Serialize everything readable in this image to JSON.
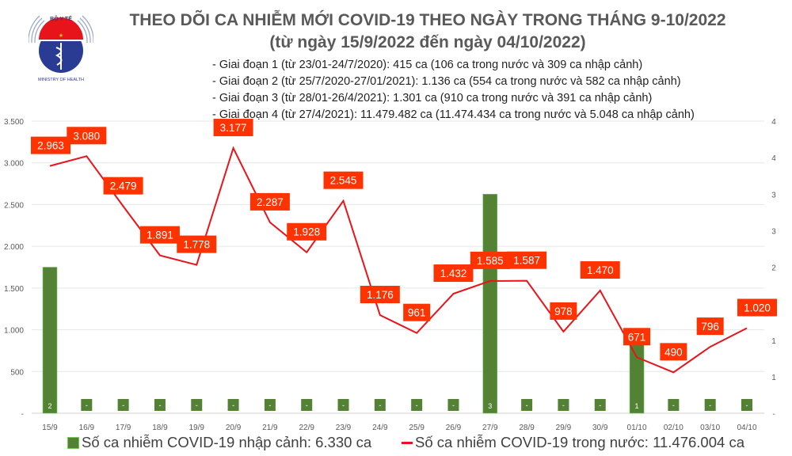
{
  "logo": {
    "text_top": "BỘ Y TẾ",
    "text_bottom": "MINISTRY OF HEALTH"
  },
  "header": {
    "title": "THEO DÕI CA NHIỄM MỚI COVID-19 THEO NGÀY TRONG THÁNG 9-10/2022",
    "subtitle": "(từ ngày 15/9/2022 đến ngày 04/10/2022)",
    "notes": [
      "- Giai đoạn 1 (từ 23/01-24/7/2020): 415 ca (106 ca trong nước và 309 ca nhập cảnh)",
      "- Giai đoạn 2 (từ 25/7/2020-27/01/2021): 1.136 ca (554 ca trong nước và 582 ca nhập cảnh)",
      "- Giai đoạn 3 (từ 28/01-26/4/2021): 1.301 ca (910 ca trong nước và 391 ca nhập cảnh)",
      "- Giai đoạn 4 (từ 27/4/2021): 11.479.482 ca (11.474.434 ca trong nước và 5.048 ca nhập cảnh)"
    ]
  },
  "chart_data": {
    "type": "bar+line",
    "categories": [
      "15/9",
      "16/9",
      "17/9",
      "18/9",
      "19/9",
      "20/9",
      "21/9",
      "22/9",
      "23/9",
      "24/9",
      "25/9",
      "26/9",
      "27/9",
      "28/9",
      "29/9",
      "30/9",
      "01/10",
      "02/10",
      "03/10",
      "04/10"
    ],
    "series": [
      {
        "name": "Số ca nhiễm COVID-19 nhập cảnh: 6.330 ca",
        "type": "bar",
        "axis": "right",
        "color": "#548235",
        "values": [
          2,
          0,
          0,
          0,
          0,
          0,
          0,
          0,
          0,
          0,
          0,
          0,
          3,
          0,
          0,
          0,
          1,
          0,
          0,
          0
        ],
        "labels": [
          "2",
          "-",
          "-",
          "-",
          "-",
          "-",
          "-",
          "-",
          "-",
          "-",
          "-",
          "-",
          "3",
          "-",
          "-",
          "-",
          "1",
          "-",
          "-",
          "-"
        ]
      },
      {
        "name": "Số ca nhiễm COVID-19 trong nước: 11.476.004 ca",
        "type": "line",
        "axis": "left",
        "color": "#e8141c",
        "values": [
          2963,
          3080,
          2479,
          1891,
          1778,
          3177,
          2287,
          1928,
          2545,
          1176,
          961,
          1432,
          1585,
          1587,
          978,
          1470,
          671,
          490,
          796,
          1020
        ],
        "labels": [
          "2.963",
          "3.080",
          "2.479",
          "1.891",
          "1.778",
          "3.177",
          "2.287",
          "1.928",
          "2.545",
          "1.176",
          "961",
          "1.432",
          "1.585",
          "1.587",
          "978",
          "1.470",
          "671",
          "490",
          "796",
          "1.020"
        ]
      }
    ],
    "left_axis": {
      "ylim": [
        0,
        3500
      ],
      "ticks": [
        "-",
        "500",
        "1.000",
        "1.500",
        "2.000",
        "2.500",
        "3.000",
        "3.500"
      ]
    },
    "right_axis": {
      "ylim": [
        0,
        4
      ],
      "ticks": [
        "-",
        "1",
        "1",
        "2",
        "2",
        "3",
        "3",
        "4",
        "4"
      ]
    },
    "label_bg": "#ff3300",
    "grid": true,
    "legend": "bottom"
  }
}
